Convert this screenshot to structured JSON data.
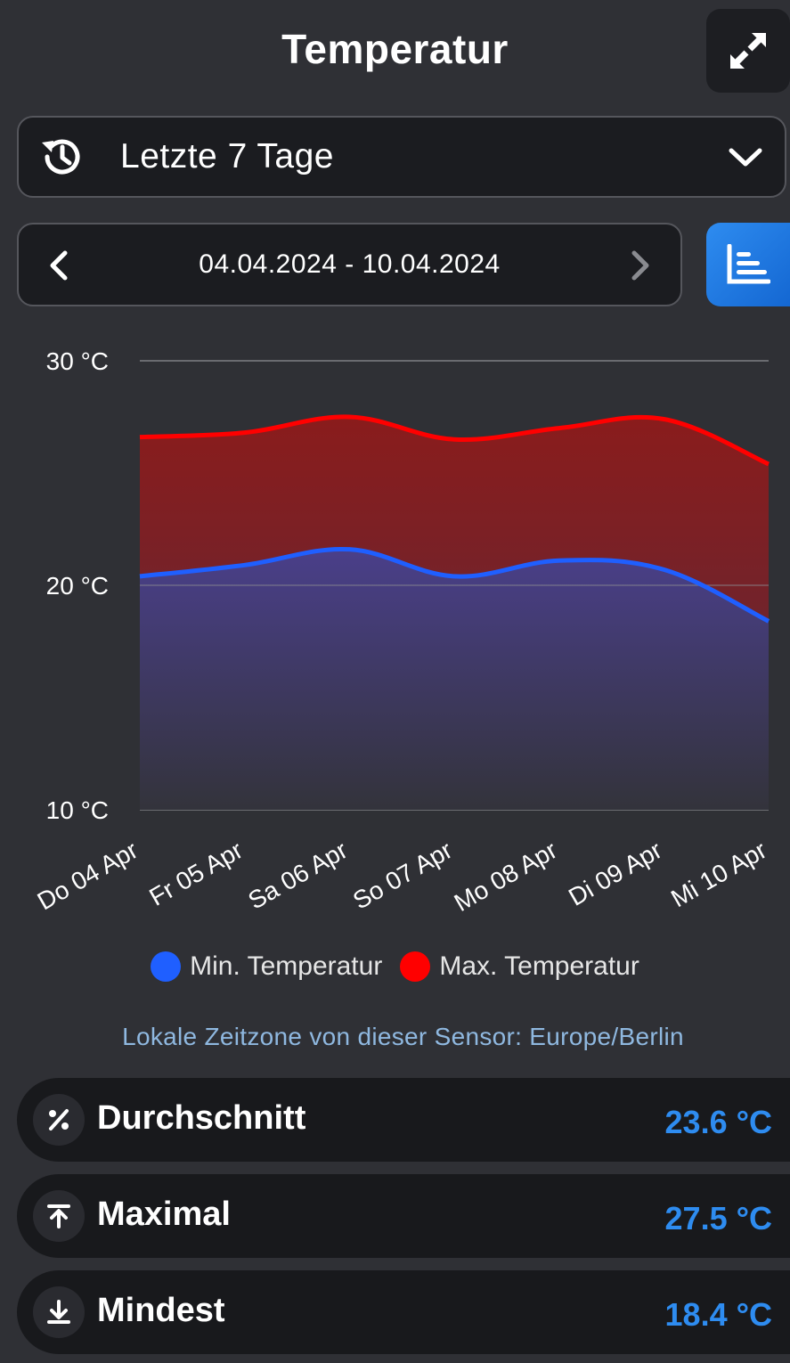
{
  "header": {
    "title": "Temperatur"
  },
  "range_select": {
    "label": "Letzte 7 Tage"
  },
  "date_nav": {
    "range": "04.04.2024 - 10.04.2024"
  },
  "colors": {
    "min": "#1f5fff",
    "max": "#ff0000",
    "accent": "#2e8cf0"
  },
  "chart_data": {
    "type": "area",
    "categories": [
      "Do 04 Apr",
      "Fr 05 Apr",
      "Sa 06 Apr",
      "So 07 Apr",
      "Mo 08 Apr",
      "Di 09 Apr",
      "Mi 10 Apr"
    ],
    "series": [
      {
        "name": "Min. Temperatur",
        "values": [
          20.4,
          20.9,
          21.6,
          20.4,
          21.1,
          20.7,
          18.4
        ]
      },
      {
        "name": "Max. Temperatur",
        "values": [
          26.6,
          26.8,
          27.5,
          26.5,
          27.0,
          27.4,
          25.4
        ]
      }
    ],
    "ylim": [
      10,
      30
    ],
    "yticks": [
      "10 °C",
      "20 °C",
      "30 °C"
    ],
    "grid": true,
    "legend": "bottom"
  },
  "legend": {
    "min_label": "Min. Temperatur",
    "max_label": "Max. Temperatur"
  },
  "timezone_note": "Lokale Zeitzone von dieser Sensor: Europe/Berlin",
  "stats": [
    {
      "label": "Durchschnitt",
      "value": "23.6 °C",
      "icon": "percent-icon"
    },
    {
      "label": "Maximal",
      "value": "27.5 °C",
      "icon": "arrow-up-to-line-icon"
    },
    {
      "label": "Mindest",
      "value": "18.4 °C",
      "icon": "arrow-down-to-line-icon"
    }
  ]
}
